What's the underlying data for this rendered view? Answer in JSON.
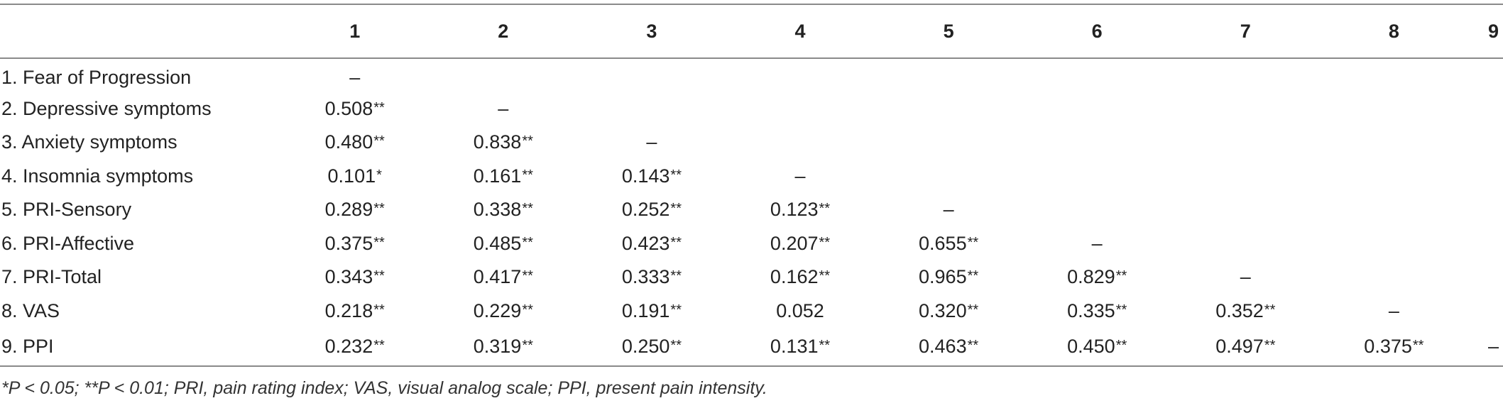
{
  "table": {
    "columns": [
      "",
      "1",
      "2",
      "3",
      "4",
      "5",
      "6",
      "7",
      "8",
      "9"
    ],
    "rows": [
      {
        "label": "1. Fear of Progression",
        "cells": [
          [
            "–",
            ""
          ],
          [
            "",
            ""
          ],
          [
            "",
            ""
          ],
          [
            "",
            ""
          ],
          [
            "",
            ""
          ],
          [
            "",
            ""
          ],
          [
            "",
            ""
          ],
          [
            "",
            ""
          ],
          [
            "",
            ""
          ]
        ]
      },
      {
        "label": "2. Depressive symptoms",
        "cells": [
          [
            "0.508",
            "**"
          ],
          [
            "–",
            ""
          ],
          [
            "",
            ""
          ],
          [
            "",
            ""
          ],
          [
            "",
            ""
          ],
          [
            "",
            ""
          ],
          [
            "",
            ""
          ],
          [
            "",
            ""
          ],
          [
            "",
            ""
          ]
        ]
      },
      {
        "label": "3. Anxiety symptoms",
        "cells": [
          [
            "0.480",
            "**"
          ],
          [
            "0.838",
            "**"
          ],
          [
            "–",
            ""
          ],
          [
            "",
            ""
          ],
          [
            "",
            ""
          ],
          [
            "",
            ""
          ],
          [
            "",
            ""
          ],
          [
            "",
            ""
          ],
          [
            "",
            ""
          ]
        ]
      },
      {
        "label": "4. Insomnia symptoms",
        "cells": [
          [
            "0.101",
            "*"
          ],
          [
            "0.161",
            "**"
          ],
          [
            "0.143",
            "**"
          ],
          [
            "–",
            ""
          ],
          [
            "",
            ""
          ],
          [
            "",
            ""
          ],
          [
            "",
            ""
          ],
          [
            "",
            ""
          ],
          [
            "",
            ""
          ]
        ]
      },
      {
        "label": "5. PRI-Sensory",
        "cells": [
          [
            "0.289",
            "**"
          ],
          [
            "0.338",
            "**"
          ],
          [
            "0.252",
            "**"
          ],
          [
            "0.123",
            "**"
          ],
          [
            "–",
            ""
          ],
          [
            "",
            ""
          ],
          [
            "",
            ""
          ],
          [
            "",
            ""
          ],
          [
            "",
            ""
          ]
        ]
      },
      {
        "label": "6. PRI-Affective",
        "cells": [
          [
            "0.375",
            "**"
          ],
          [
            "0.485",
            "**"
          ],
          [
            "0.423",
            "**"
          ],
          [
            "0.207",
            "**"
          ],
          [
            "0.655",
            "**"
          ],
          [
            "–",
            ""
          ],
          [
            "",
            ""
          ],
          [
            "",
            ""
          ],
          [
            "",
            ""
          ]
        ]
      },
      {
        "label": "7. PRI-Total",
        "cells": [
          [
            "0.343",
            "**"
          ],
          [
            "0.417",
            "**"
          ],
          [
            "0.333",
            "**"
          ],
          [
            "0.162",
            "**"
          ],
          [
            "0.965",
            "**"
          ],
          [
            "0.829",
            "**"
          ],
          [
            "–",
            ""
          ],
          [
            "",
            ""
          ],
          [
            "",
            ""
          ]
        ]
      },
      {
        "label": "8. VAS",
        "cells": [
          [
            "0.218",
            "**"
          ],
          [
            "0.229",
            "**"
          ],
          [
            "0.191",
            "**"
          ],
          [
            "0.052",
            ""
          ],
          [
            "0.320",
            "**"
          ],
          [
            "0.335",
            "**"
          ],
          [
            "0.352",
            "**"
          ],
          [
            "–",
            ""
          ],
          [
            "",
            ""
          ]
        ]
      },
      {
        "label": "9. PPI",
        "cells": [
          [
            "0.232",
            "**"
          ],
          [
            "0.319",
            "**"
          ],
          [
            "0.250",
            "**"
          ],
          [
            "0.131",
            "**"
          ],
          [
            "0.463",
            "**"
          ],
          [
            "0.450",
            "**"
          ],
          [
            "0.497",
            "**"
          ],
          [
            "0.375",
            "**"
          ],
          [
            "–",
            ""
          ]
        ]
      }
    ]
  },
  "footnote": "*P < 0.05; **P < 0.01; PRI, pain rating index; VAS, visual analog scale; PPI, present pain intensity."
}
